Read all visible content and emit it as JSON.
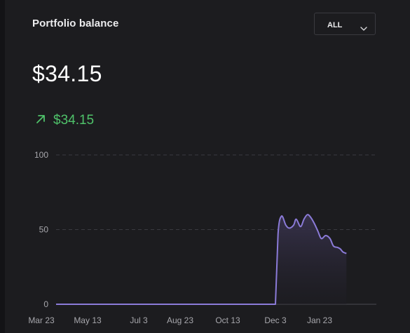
{
  "card": {
    "title": "Portfolio balance",
    "range_selector": {
      "selected": "ALL",
      "icon": "chevron-down-icon"
    },
    "balance": "$34.15",
    "change": {
      "icon": "arrow-up-right-icon",
      "value": "$34.15",
      "color": "#4fc26a"
    }
  },
  "chart_data": {
    "type": "area",
    "y_ticks": [
      "0",
      "50",
      "100"
    ],
    "ylim": [
      0,
      100
    ],
    "x_ticks": [
      "Mar 23",
      "May 13",
      "Jul 3",
      "Aug 23",
      "Oct 13",
      "Dec 3",
      "Jan 23"
    ],
    "grid": true,
    "series": [
      {
        "color": "#8b7bd8",
        "x": [
          "Mar 23",
          "May 13",
          "Jul 3",
          "Aug 23",
          "Oct 13",
          "Nov 23",
          "Dec 3",
          "Dec 6",
          "Dec 10",
          "Dec 15",
          "Dec 19",
          "Dec 24",
          "Dec 27",
          "Jan 1",
          "Jan 5",
          "Jan 9",
          "Jan 13",
          "Jan 17",
          "Jan 21",
          "Jan 25",
          "Jan 30",
          "Feb 4",
          "Feb 8",
          "Feb 13",
          "Feb 16",
          "Feb 19",
          "Feb 23"
        ],
        "values": [
          0,
          0,
          0,
          0,
          0,
          0,
          0,
          47,
          59,
          53,
          51,
          53,
          57,
          52,
          57,
          60,
          58,
          54,
          49,
          44,
          46,
          44,
          39,
          38,
          37,
          35,
          34
        ]
      }
    ]
  }
}
